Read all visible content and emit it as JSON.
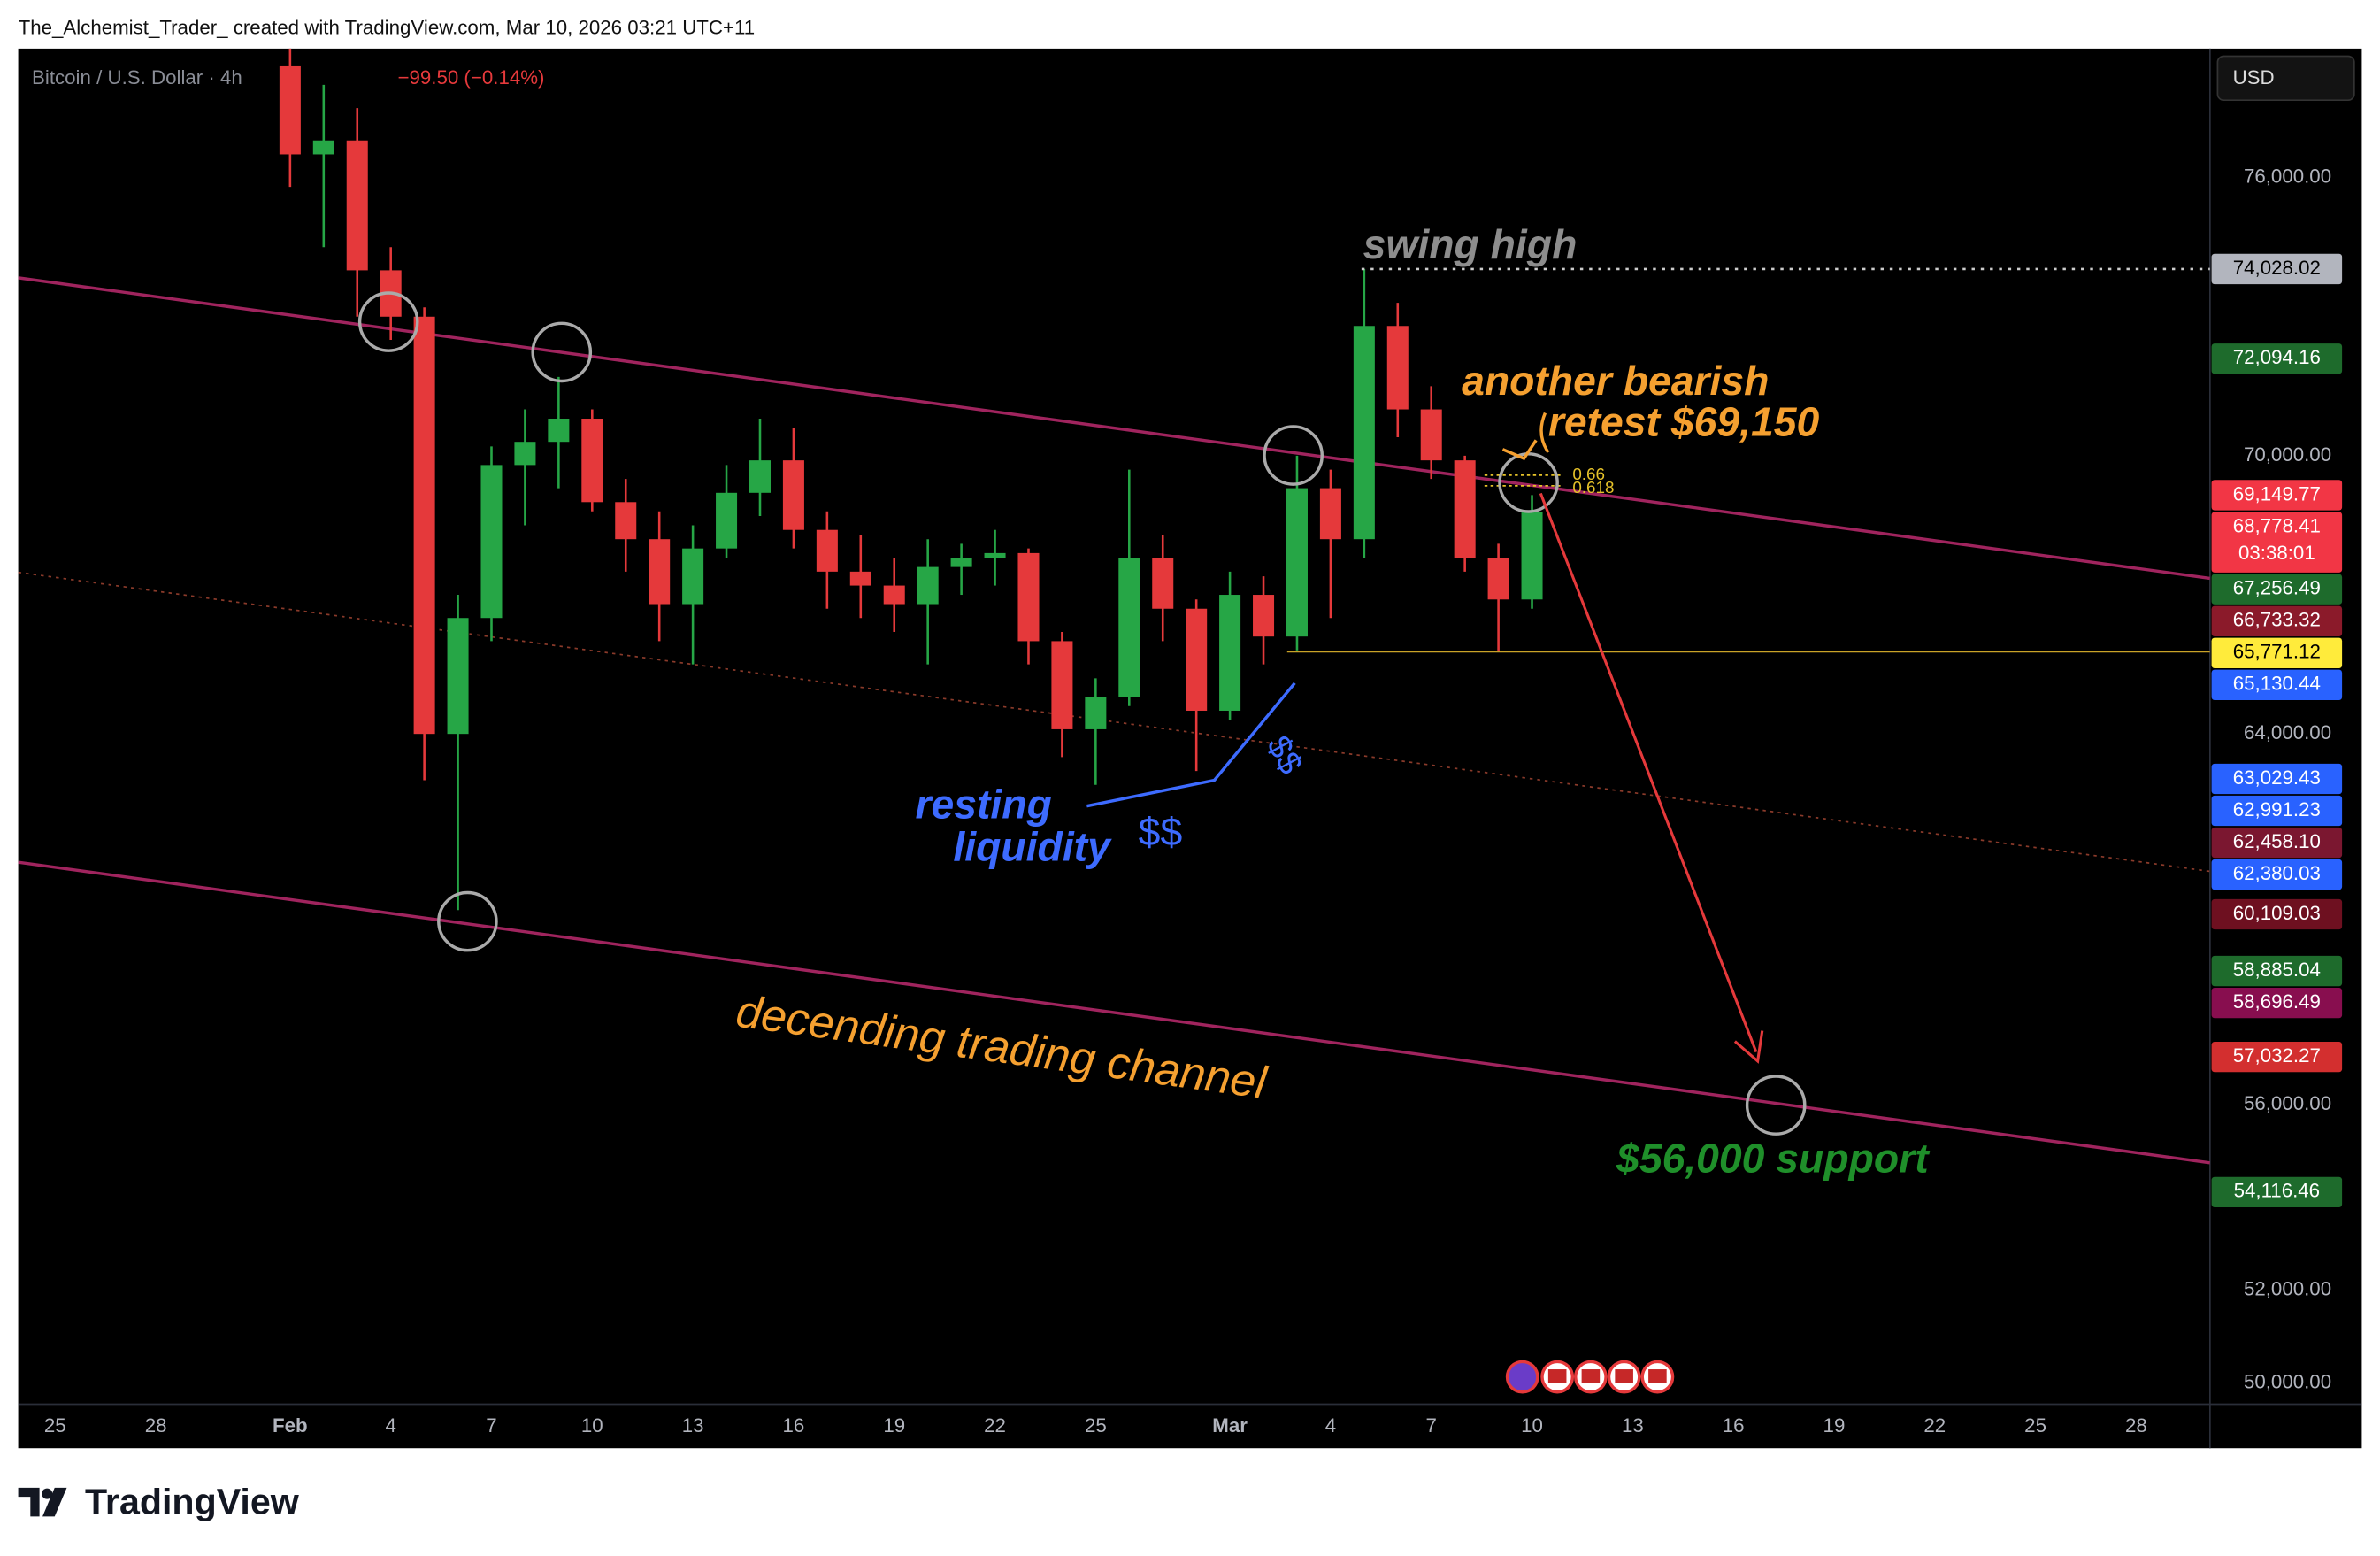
{
  "header": "The_Alchemist_Trader_ created with TradingView.com, Mar 10, 2026 03:21 UTC+11",
  "brand": "TradingView",
  "currency_button": "USD",
  "chart_data": {
    "type": "candlestick",
    "symbol": "Bitcoin / U.S. Dollar · 4h",
    "change": "−99.50 (−0.14%)",
    "up_color": "#26a646",
    "down_color": "#e5393b",
    "x": [
      7,
      8,
      9,
      10,
      11,
      12,
      13,
      14,
      15,
      16,
      17,
      18,
      19,
      20,
      21,
      22,
      23,
      24,
      25,
      26,
      27,
      28,
      29,
      30,
      31,
      32,
      33,
      34,
      35,
      36,
      37,
      38,
      39,
      40,
      41,
      42,
      43,
      44
    ],
    "open": [
      78400,
      76500,
      76800,
      74000,
      73000,
      64000,
      66500,
      69800,
      70300,
      70800,
      69000,
      68200,
      66800,
      68000,
      69200,
      69900,
      68400,
      67500,
      67200,
      66800,
      67600,
      67800,
      67900,
      66000,
      64100,
      64800,
      67800,
      66700,
      64500,
      67000,
      66100,
      69300,
      68200,
      72800,
      71000,
      69900,
      67800,
      66900
    ],
    "high": [
      79500,
      78000,
      77500,
      74500,
      73200,
      67000,
      70200,
      71000,
      71700,
      71000,
      69500,
      68800,
      68500,
      69800,
      70800,
      70600,
      68800,
      68300,
      67800,
      68200,
      68100,
      68400,
      68000,
      66200,
      65200,
      69700,
      68300,
      66900,
      67500,
      67400,
      70000,
      69700,
      74028,
      73300,
      71500,
      70000,
      68100,
      69150
    ],
    "low": [
      75800,
      74500,
      73000,
      72500,
      63000,
      60200,
      66000,
      68500,
      69300,
      68800,
      67500,
      66000,
      65500,
      67800,
      68700,
      68000,
      66700,
      66500,
      66200,
      65500,
      67000,
      67200,
      65500,
      63500,
      62900,
      64600,
      66000,
      63200,
      64300,
      65500,
      65800,
      66500,
      67800,
      70400,
      69500,
      67500,
      65771,
      66700
    ],
    "close": [
      76500,
      76800,
      74000,
      73000,
      64000,
      66500,
      69800,
      70300,
      70800,
      69000,
      68200,
      66800,
      68000,
      69200,
      69900,
      68400,
      67500,
      67200,
      66800,
      67600,
      67800,
      67900,
      66000,
      64100,
      64800,
      67800,
      66700,
      64500,
      67000,
      66100,
      69300,
      68200,
      72800,
      71000,
      69900,
      67800,
      66900,
      68778.41
    ],
    "xlim": [
      -1.1,
      64.2
    ],
    "ylim": [
      49541,
      78783
    ],
    "xticks": [
      {
        "value": 0,
        "label": "25"
      },
      {
        "value": 3,
        "label": "28"
      },
      {
        "value": 7,
        "label": "Feb"
      },
      {
        "value": 10,
        "label": "4"
      },
      {
        "value": 13,
        "label": "7"
      },
      {
        "value": 16,
        "label": "10"
      },
      {
        "value": 19,
        "label": "13"
      },
      {
        "value": 22,
        "label": "16"
      },
      {
        "value": 25,
        "label": "19"
      },
      {
        "value": 28,
        "label": "22"
      },
      {
        "value": 31,
        "label": "25"
      },
      {
        "value": 35,
        "label": "Mar"
      },
      {
        "value": 38,
        "label": "4"
      },
      {
        "value": 41,
        "label": "7"
      },
      {
        "value": 44,
        "label": "10"
      },
      {
        "value": 47,
        "label": "13"
      },
      {
        "value": 50,
        "label": "16"
      },
      {
        "value": 53,
        "label": "19"
      },
      {
        "value": 56,
        "label": "22"
      },
      {
        "value": 59,
        "label": "25"
      },
      {
        "value": 62,
        "label": "28"
      }
    ],
    "yticks": [
      {
        "value": 76000,
        "label": "76,000.00"
      },
      {
        "value": 70000,
        "label": "70,000.00"
      },
      {
        "value": 64000,
        "label": "64,000.00"
      },
      {
        "value": 56000,
        "label": "56,000.00"
      },
      {
        "value": 52000,
        "label": "52,000.00"
      },
      {
        "value": 50000,
        "label": "50,000.00"
      }
    ],
    "price_tags": [
      {
        "value": 74028.02,
        "label": "74,028.02",
        "color": "#b2b5be"
      },
      {
        "value": 72094.16,
        "label": "72,094.16",
        "color": "#1e6b2c"
      },
      {
        "value": 69149.77,
        "label": "69,149.77",
        "color": "#f23645"
      },
      {
        "value": 68778.41,
        "label": "68,778.41",
        "color": "#f23645"
      },
      {
        "value": 67256.49,
        "label": "67,256.49",
        "color": "#1e6b2c"
      },
      {
        "value": 66733.32,
        "label": "66,733.32",
        "color": "#8b1a2a"
      },
      {
        "value": 65771.12,
        "label": "65,771.12",
        "color": "#ffeb3b"
      },
      {
        "value": 65130.44,
        "label": "65,130.44",
        "color": "#2962ff"
      },
      {
        "value": 63029.43,
        "label": "63,029.43",
        "color": "#2962ff"
      },
      {
        "value": 62991.23,
        "label": "62,991.23",
        "color": "#2962ff"
      },
      {
        "value": 62458.1,
        "label": "62,458.10",
        "color": "#7b1730"
      },
      {
        "value": 62380.03,
        "label": "62,380.03",
        "color": "#2962ff"
      },
      {
        "value": 60109.03,
        "label": "60,109.03",
        "color": "#6e1020"
      },
      {
        "value": 58885.04,
        "label": "58,885.04",
        "color": "#1e6b2c"
      },
      {
        "value": 58696.49,
        "label": "58,696.49",
        "color": "#880e4f"
      },
      {
        "value": 57032.27,
        "label": "57,032.27",
        "color": "#d32f2f"
      },
      {
        "value": 54116.46,
        "label": "54,116.46",
        "color": "#1e6b2c"
      }
    ],
    "countdown": "03:38:01",
    "annotations": {
      "swing_high": "swing high",
      "bearish_1": "another bearish",
      "bearish_2": "retest $69,150",
      "resting_1": "resting",
      "resting_2": "liquidity",
      "dollars_1": "$$",
      "dollars_2": "$$",
      "channel": "decending trading channel",
      "support": "$56,000 support",
      "fib_1": "0.66",
      "fib_2": "0.618"
    }
  }
}
